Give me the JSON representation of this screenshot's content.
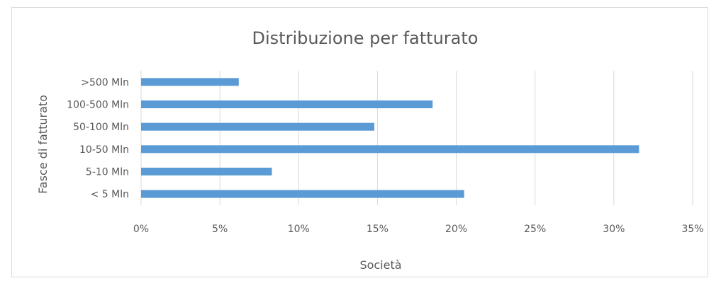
{
  "chart_data": {
    "type": "bar",
    "orientation": "horizontal",
    "title": "Distribuzione per fatturato",
    "xlabel": "Società",
    "ylabel": "Fasce di fatturato",
    "categories": [
      "< 5 Mln",
      "5-10 Mln",
      "10-50 Mln",
      "50-100 Mln",
      "100-500 Mln",
      ">500 Mln"
    ],
    "values": [
      20.5,
      8.3,
      31.6,
      14.8,
      18.5,
      6.2
    ],
    "xlim": [
      0,
      35
    ],
    "xticks": [
      "0%",
      "5%",
      "10%",
      "15%",
      "20%",
      "25%",
      "30%",
      "35%"
    ],
    "grid": "vertical",
    "legend": "none",
    "colors": {
      "bar": "#5b9bd5",
      "grid": "#d9d9d9",
      "text": "#595959"
    }
  }
}
